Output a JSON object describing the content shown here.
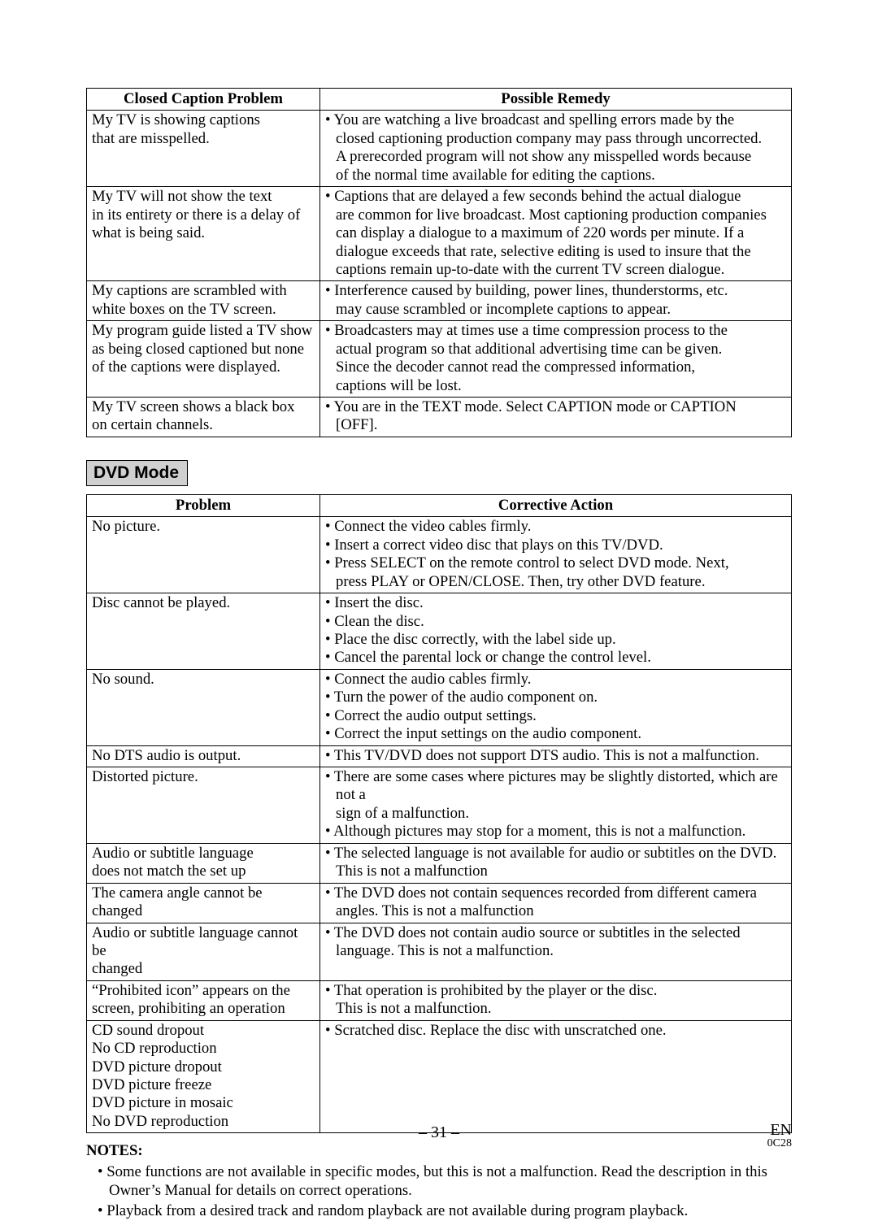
{
  "closedCaptionTable": {
    "headers": {
      "problem": "Closed Caption Problem",
      "remedy": "Possible Remedy"
    },
    "rows": [
      {
        "problem": [
          "My TV is showing captions",
          "that are misspelled."
        ],
        "remedy": [
          "• You are watching a live broadcast and spelling errors made by the",
          "closed captioning production company may pass through uncorrected.",
          "A prerecorded program will not show any misspelled words because",
          "of the normal time available for editing the captions."
        ],
        "remedy_indent": [
          false,
          true,
          true,
          true
        ]
      },
      {
        "problem": [
          "My TV will not show the text",
          "in its entirety or there is a delay of",
          "what is being said."
        ],
        "remedy": [
          "• Captions that are delayed a few seconds behind the actual dialogue",
          "are common for live broadcast. Most captioning production companies",
          "can display a dialogue to a maximum of 220 words per minute. If a",
          "dialogue exceeds that rate, selective editing is used to insure that the",
          "captions remain up-to-date with the current TV screen dialogue."
        ],
        "remedy_indent": [
          false,
          true,
          true,
          true,
          true
        ]
      },
      {
        "problem": [
          "My captions are scrambled with",
          "white boxes on the TV screen."
        ],
        "remedy": [
          "• Interference caused by building, power lines, thunderstorms, etc.",
          "may cause scrambled or incomplete captions to appear."
        ],
        "remedy_indent": [
          false,
          true
        ]
      },
      {
        "problem": [
          "My program guide listed a TV show",
          "as being closed captioned but none",
          "of the captions were displayed."
        ],
        "remedy": [
          "• Broadcasters may at times use a time compression process to the",
          "actual program so that additional advertising time can be given.",
          "Since the decoder cannot read the compressed information,",
          "captions will be lost."
        ],
        "remedy_indent": [
          false,
          true,
          true,
          true
        ]
      },
      {
        "problem": [
          "My TV screen shows a black box",
          "on certain channels."
        ],
        "remedy": [
          "• You are in the TEXT mode. Select CAPTION mode or CAPTION",
          "[OFF]."
        ],
        "remedy_indent": [
          false,
          true
        ]
      }
    ]
  },
  "dvdSection": {
    "heading": "DVD Mode"
  },
  "dvdTable": {
    "headers": {
      "problem": "Problem",
      "action": "Corrective Action"
    },
    "rows": [
      {
        "problem": [
          "No picture."
        ],
        "remedy": [
          "• Connect the video cables firmly.",
          "• Insert a correct video disc that plays on this TV/DVD.",
          "• Press SELECT on the remote control to select DVD mode. Next,",
          "press PLAY or OPEN/CLOSE. Then, try other DVD feature."
        ],
        "remedy_indent": [
          false,
          false,
          false,
          true
        ]
      },
      {
        "problem": [
          "Disc cannot be played."
        ],
        "remedy": [
          "• Insert the disc.",
          "• Clean the disc.",
          "• Place the disc correctly, with the label side up.",
          "• Cancel the parental lock or change the control level."
        ],
        "remedy_indent": [
          false,
          false,
          false,
          false
        ]
      },
      {
        "problem": [
          "No sound."
        ],
        "remedy": [
          "• Connect the audio cables firmly.",
          "• Turn the power of the audio component on.",
          "• Correct the audio output settings.",
          "• Correct the input settings on the audio component."
        ],
        "remedy_indent": [
          false,
          false,
          false,
          false
        ]
      },
      {
        "problem": [
          "No DTS audio is output."
        ],
        "remedy": [
          "• This TV/DVD does not support DTS audio. This is not a malfunction."
        ],
        "remedy_indent": [
          false
        ]
      },
      {
        "problem": [
          "Distorted picture."
        ],
        "remedy": [
          "• There are some cases where pictures may be slightly distorted, which are not a",
          "sign of a malfunction.",
          "• Although pictures may stop for a moment, this is not a malfunction."
        ],
        "remedy_indent": [
          false,
          true,
          false
        ]
      },
      {
        "problem": [
          "Audio or subtitle language",
          "does not match the set up"
        ],
        "remedy": [
          "• The selected language is not available for audio or subtitles on the DVD.",
          "This is not a malfunction"
        ],
        "remedy_indent": [
          false,
          true
        ]
      },
      {
        "problem": [
          "The camera angle cannot be changed"
        ],
        "remedy": [
          "• The DVD does not contain sequences recorded from different camera",
          "angles.  This is not a malfunction"
        ],
        "remedy_indent": [
          false,
          true
        ]
      },
      {
        "problem": [
          "Audio or subtitle language cannot be",
          "changed"
        ],
        "remedy": [
          "• The DVD does not contain audio source or subtitles in the selected",
          "language.   This is not a malfunction."
        ],
        "remedy_indent": [
          false,
          true
        ]
      },
      {
        "problem": [
          "“Prohibited icon” appears on the",
          "screen, prohibiting an operation"
        ],
        "remedy": [
          "• That operation is prohibited by the player or the disc.",
          "This is not a malfunction."
        ],
        "remedy_indent": [
          false,
          true
        ]
      },
      {
        "problem": [
          "CD sound dropout",
          "No CD reproduction",
          "DVD picture dropout",
          "DVD picture freeze",
          "DVD picture in mosaic",
          "No DVD reproduction"
        ],
        "remedy": [
          "• Scratched disc. Replace the disc with unscratched one."
        ],
        "remedy_indent": [
          false
        ]
      }
    ]
  },
  "notes": {
    "heading": "NOTES:",
    "items": [
      "• Some functions are not available in specific modes, but this is not a malfunction. Read the description in this Owner’s Manual for details on correct operations.",
      "• Playback from a desired track and random playback are not available during program playback."
    ]
  },
  "footer": {
    "pageNumber": "– 31 –",
    "lang": "EN",
    "code": "0C28"
  }
}
